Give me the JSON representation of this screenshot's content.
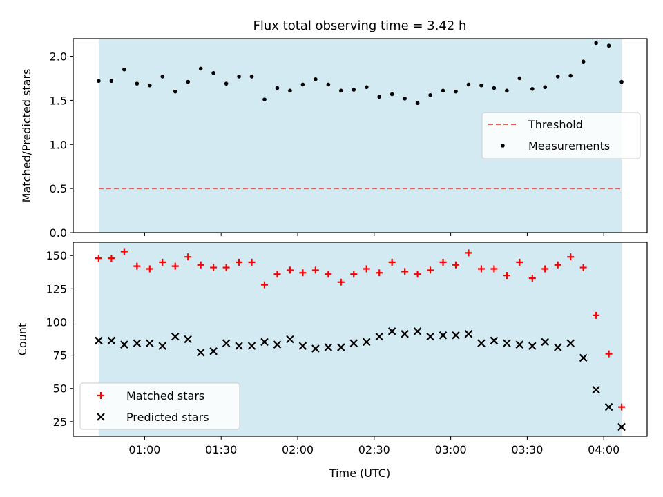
{
  "title": "Flux total observing time = 3.42 h",
  "colors": {
    "shade": "#add8e6",
    "threshold": "#e8605a",
    "measurements": "#000000",
    "matched": "#ff0000",
    "predicted": "#000000"
  },
  "chart_data": [
    {
      "type": "scatter",
      "ylabel": "Matched/Predicted stars",
      "ylim": [
        0,
        2.2
      ],
      "yticks": [
        0.0,
        0.5,
        1.0,
        1.5,
        2.0
      ],
      "ytick_labels": [
        "0.0",
        "0.5",
        "1.0",
        "1.5",
        "2.0"
      ],
      "shaded_interval": [
        "00:42",
        "04:07"
      ],
      "legend_placement": "center-right",
      "series": [
        {
          "name": "Threshold",
          "kind": "hline",
          "style": "dashed",
          "x": [
            "00:42",
            "04:07"
          ],
          "value": 0.5
        },
        {
          "name": "Measurements",
          "kind": "dots",
          "x": [
            "00:42",
            "00:47",
            "00:52",
            "00:57",
            "01:02",
            "01:07",
            "01:12",
            "01:17",
            "01:22",
            "01:27",
            "01:32",
            "01:37",
            "01:42",
            "01:47",
            "01:52",
            "01:57",
            "02:02",
            "02:07",
            "02:12",
            "02:17",
            "02:22",
            "02:27",
            "02:32",
            "02:37",
            "02:42",
            "02:47",
            "02:52",
            "02:57",
            "03:02",
            "03:07",
            "03:12",
            "03:17",
            "03:22",
            "03:27",
            "03:32",
            "03:37",
            "03:42",
            "03:47",
            "03:52",
            "03:57",
            "04:02",
            "04:07"
          ],
          "values": [
            1.72,
            1.72,
            1.85,
            1.69,
            1.67,
            1.77,
            1.6,
            1.71,
            1.86,
            1.81,
            1.69,
            1.77,
            1.77,
            1.51,
            1.64,
            1.61,
            1.68,
            1.74,
            1.68,
            1.61,
            1.62,
            1.65,
            1.54,
            1.57,
            1.52,
            1.47,
            1.56,
            1.61,
            1.6,
            1.68,
            1.67,
            1.64,
            1.61,
            1.75,
            1.63,
            1.65,
            1.77,
            1.78,
            1.94,
            2.15,
            2.12,
            1.71
          ]
        }
      ]
    },
    {
      "type": "scatter",
      "xlabel": "Time (UTC)",
      "ylabel": "Count",
      "ylim": [
        14,
        160
      ],
      "yticks": [
        25,
        50,
        75,
        100,
        125,
        150
      ],
      "ytick_labels": [
        "25",
        "50",
        "75",
        "100",
        "125",
        "150"
      ],
      "xticks": [
        "01:00",
        "01:30",
        "02:00",
        "02:30",
        "03:00",
        "03:30",
        "04:00"
      ],
      "xlim": [
        "00:32",
        "04:17"
      ],
      "shaded_interval": [
        "00:42",
        "04:07"
      ],
      "legend_placement": "lower-left",
      "series": [
        {
          "name": "Matched stars",
          "marker": "plus",
          "x": [
            "00:42",
            "00:47",
            "00:52",
            "00:57",
            "01:02",
            "01:07",
            "01:12",
            "01:17",
            "01:22",
            "01:27",
            "01:32",
            "01:37",
            "01:42",
            "01:47",
            "01:52",
            "01:57",
            "02:02",
            "02:07",
            "02:12",
            "02:17",
            "02:22",
            "02:27",
            "02:32",
            "02:37",
            "02:42",
            "02:47",
            "02:52",
            "02:57",
            "03:02",
            "03:07",
            "03:12",
            "03:17",
            "03:22",
            "03:27",
            "03:32",
            "03:37",
            "03:42",
            "03:47",
            "03:52",
            "03:57",
            "04:02",
            "04:07"
          ],
          "values": [
            148,
            148,
            153,
            142,
            140,
            145,
            142,
            149,
            143,
            141,
            141,
            145,
            145,
            128,
            136,
            139,
            137,
            139,
            136,
            130,
            136,
            140,
            137,
            145,
            138,
            136,
            139,
            145,
            143,
            152,
            140,
            140,
            135,
            145,
            133,
            140,
            143,
            149,
            141,
            105,
            76,
            36
          ]
        },
        {
          "name": "Predicted stars",
          "marker": "x",
          "x": [
            "00:42",
            "00:47",
            "00:52",
            "00:57",
            "01:02",
            "01:07",
            "01:12",
            "01:17",
            "01:22",
            "01:27",
            "01:32",
            "01:37",
            "01:42",
            "01:47",
            "01:52",
            "01:57",
            "02:02",
            "02:07",
            "02:12",
            "02:17",
            "02:22",
            "02:27",
            "02:32",
            "02:37",
            "02:42",
            "02:47",
            "02:52",
            "02:57",
            "03:02",
            "03:07",
            "03:12",
            "03:17",
            "03:22",
            "03:27",
            "03:32",
            "03:37",
            "03:42",
            "03:47",
            "03:52",
            "03:57",
            "04:02",
            "04:07"
          ],
          "values": [
            86,
            86,
            83,
            84,
            84,
            82,
            89,
            87,
            77,
            78,
            84,
            82,
            82,
            85,
            83,
            87,
            82,
            80,
            81,
            81,
            84,
            85,
            89,
            93,
            91,
            93,
            89,
            90,
            90,
            91,
            84,
            86,
            84,
            83,
            82,
            85,
            81,
            84,
            73,
            49,
            36,
            21
          ]
        }
      ]
    }
  ]
}
